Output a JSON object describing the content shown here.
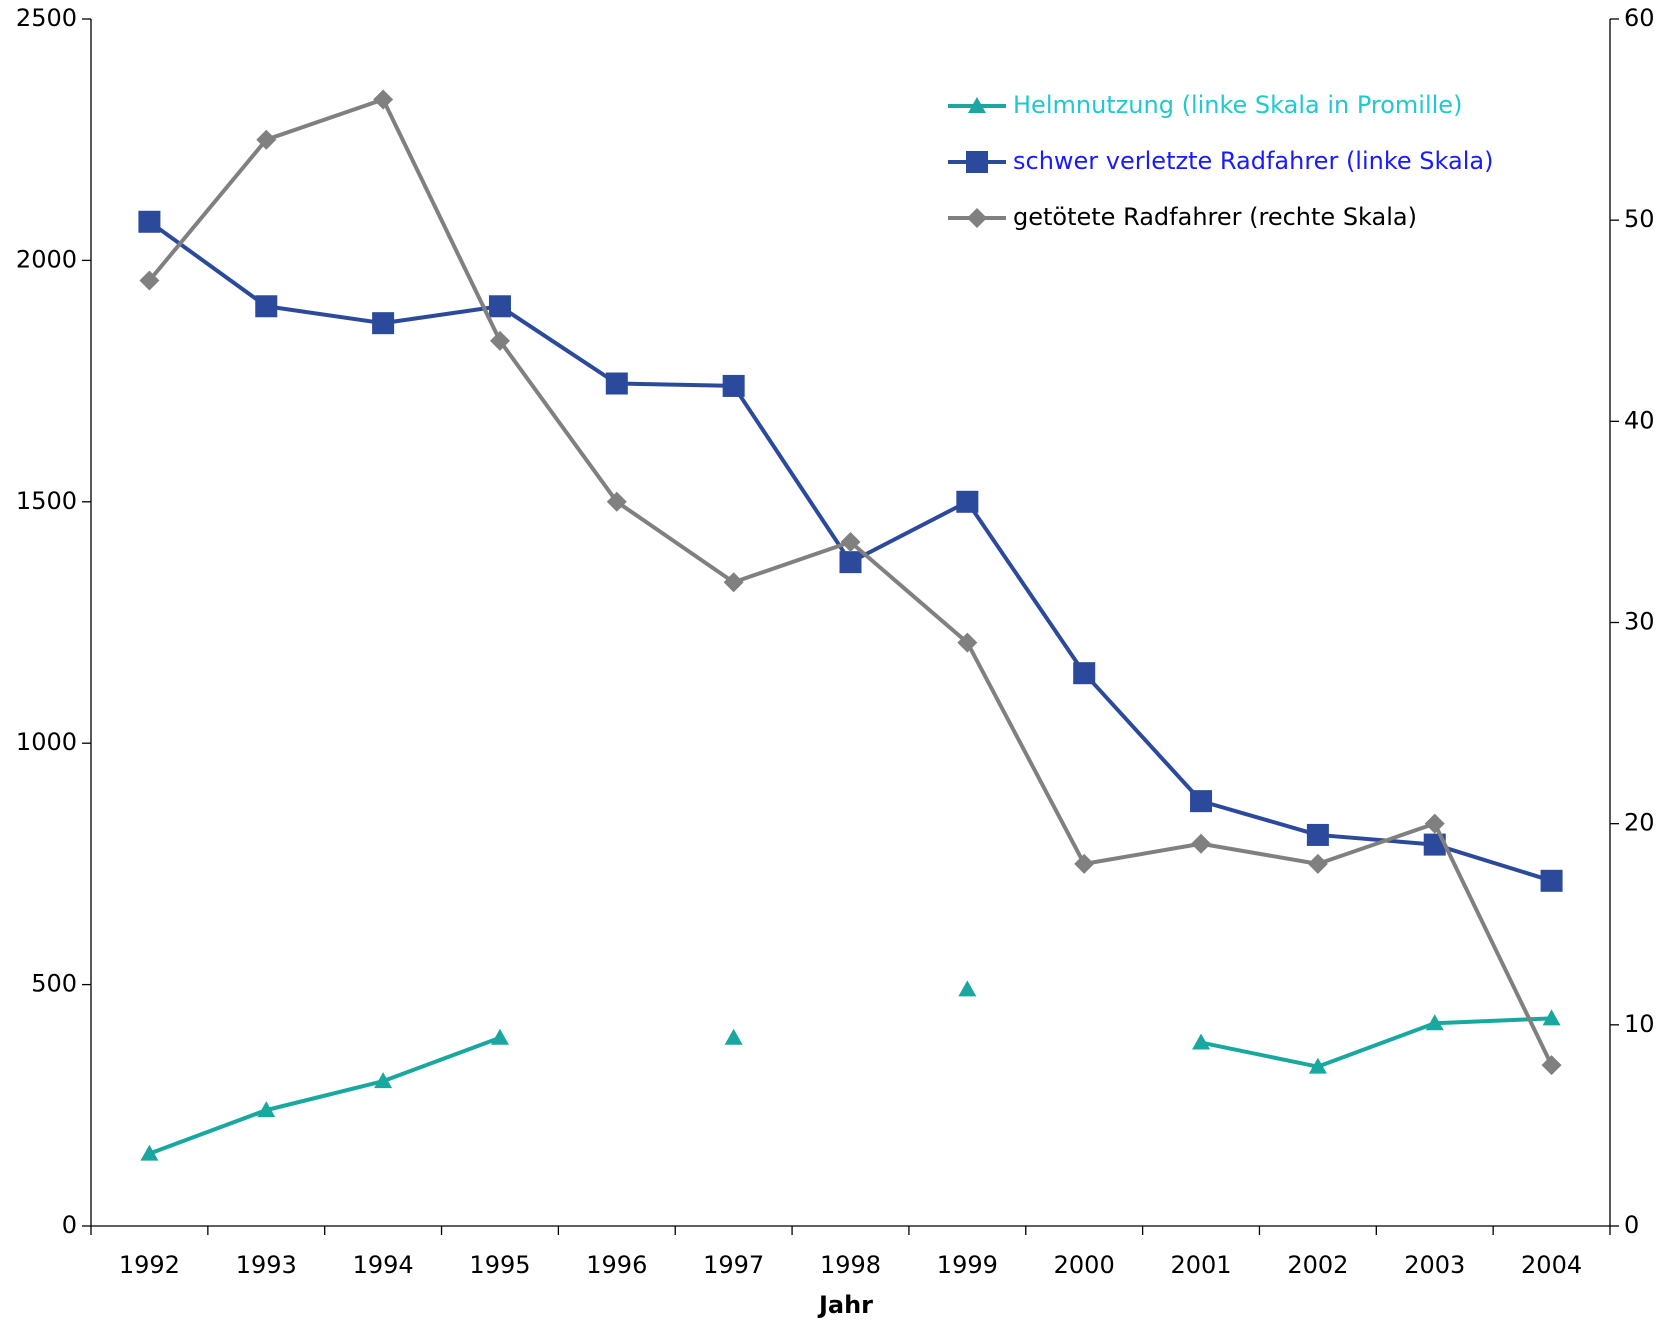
{
  "chart_data": {
    "type": "line",
    "xlabel": "Jahr",
    "categories": [
      "1992",
      "1993",
      "1994",
      "1995",
      "1996",
      "1997",
      "1998",
      "1999",
      "2000",
      "2001",
      "2002",
      "2003",
      "2004"
    ],
    "series": [
      {
        "name": "Helmnutzung (linke Skala in Promille)",
        "color": "#18a8a0",
        "text_color": "#20c8d0",
        "marker": "triangle",
        "values": [
          150,
          240,
          300,
          390,
          null,
          390,
          null,
          490,
          null,
          380,
          330,
          420,
          430
        ]
      },
      {
        "name": "schwer verletzte Radfahrer (linke Skala)",
        "color": "#2c4a9c",
        "text_color": "#1a1aff",
        "marker": "square",
        "values": [
          2080,
          1905,
          1870,
          1905,
          1745,
          1740,
          1375,
          1500,
          1145,
          880,
          810,
          790,
          715
        ]
      },
      {
        "name": "getötete Radfahrer (rechte Skala)",
        "color": "#808080",
        "text_color": "#000000",
        "marker": "diamond",
        "axis": "y2",
        "values": [
          47,
          54,
          56,
          44,
          36,
          32,
          34,
          29,
          18,
          19,
          18,
          20,
          8
        ]
      }
    ],
    "ylim": [
      0,
      2500
    ],
    "yticks": [
      0,
      500,
      1000,
      1500,
      2000,
      2500
    ],
    "y2lim": [
      0,
      60
    ],
    "y2ticks": [
      0,
      10,
      20,
      30,
      40,
      50,
      60
    ],
    "grid": false,
    "legend": "upper right"
  }
}
